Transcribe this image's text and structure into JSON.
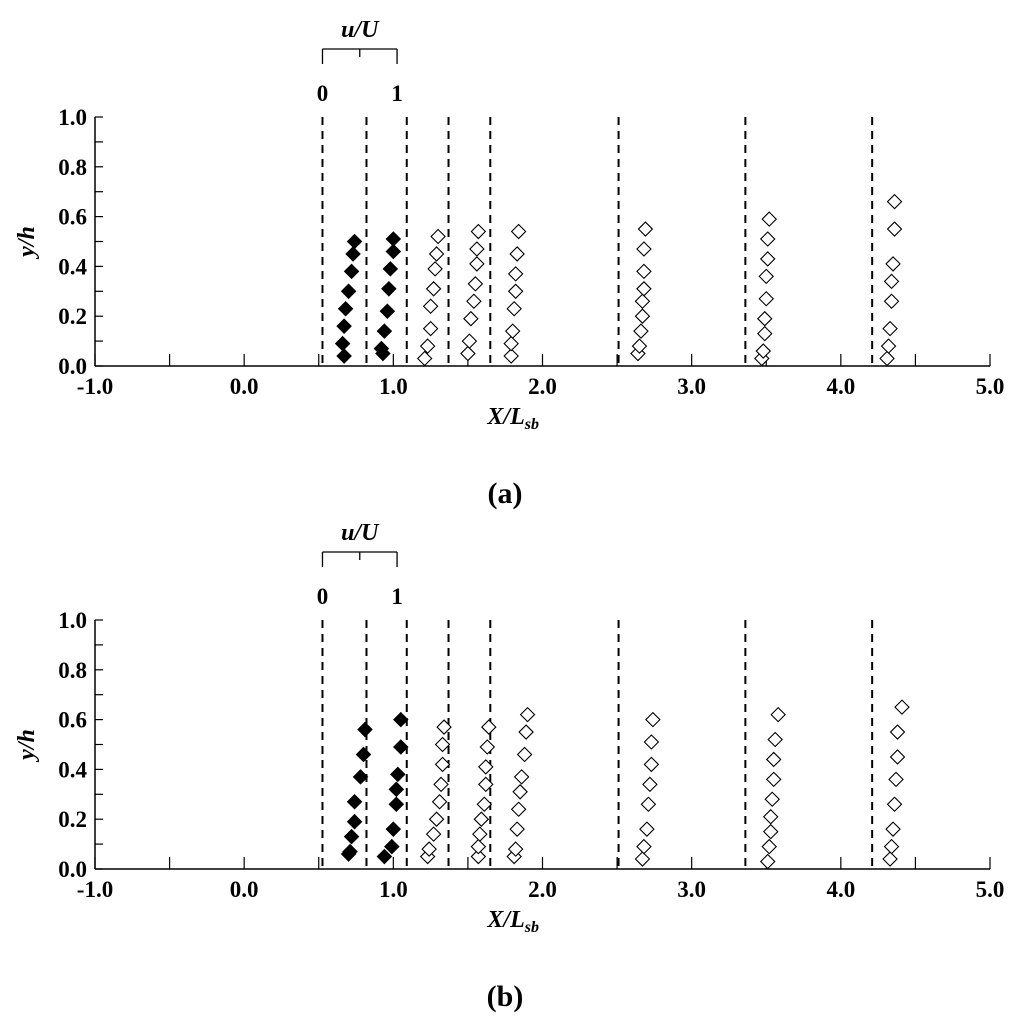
{
  "chart_data": [
    {
      "type": "scatter",
      "caption": "(a)",
      "xlabel": "X/L",
      "xlabel_sub": "sb",
      "ylabel": "y/h",
      "xlim": [
        -1.0,
        5.0
      ],
      "ylim": [
        0.0,
        1.0
      ],
      "x_ticks": [
        "-1.0",
        "0.0",
        "1.0",
        "2.0",
        "3.0",
        "4.0",
        "5.0"
      ],
      "y_ticks": [
        "0.0",
        "0.2",
        "0.4",
        "0.6",
        "0.8",
        "1.0"
      ],
      "inset_scale": {
        "label": "u/U",
        "min_label": "0",
        "max_label": "1"
      },
      "profile_stations": [
        0.525,
        0.82,
        1.09,
        1.37,
        1.65,
        2.51,
        3.36,
        4.21
      ],
      "series": [
        {
          "filled": true,
          "station": 0.525,
          "points": [
            [
              0.67,
              0.04
            ],
            [
              0.66,
              0.09
            ],
            [
              0.67,
              0.16
            ],
            [
              0.68,
              0.23
            ],
            [
              0.7,
              0.3
            ],
            [
              0.72,
              0.38
            ],
            [
              0.73,
              0.45
            ],
            [
              0.74,
              0.5
            ]
          ]
        },
        {
          "filled": true,
          "station": 0.82,
          "points": [
            [
              0.93,
              0.05
            ],
            [
              0.92,
              0.07
            ],
            [
              0.94,
              0.14
            ],
            [
              0.96,
              0.22
            ],
            [
              0.97,
              0.31
            ],
            [
              0.98,
              0.39
            ],
            [
              1.0,
              0.46
            ],
            [
              1.0,
              0.51
            ]
          ]
        },
        {
          "filled": false,
          "station": 1.09,
          "points": [
            [
              1.21,
              0.03
            ],
            [
              1.23,
              0.08
            ],
            [
              1.25,
              0.15
            ],
            [
              1.25,
              0.24
            ],
            [
              1.27,
              0.31
            ],
            [
              1.28,
              0.39
            ],
            [
              1.29,
              0.45
            ],
            [
              1.3,
              0.52
            ]
          ]
        },
        {
          "filled": false,
          "station": 1.37,
          "points": [
            [
              1.5,
              0.05
            ],
            [
              1.51,
              0.1
            ],
            [
              1.52,
              0.19
            ],
            [
              1.54,
              0.26
            ],
            [
              1.55,
              0.33
            ],
            [
              1.56,
              0.41
            ],
            [
              1.56,
              0.47
            ],
            [
              1.57,
              0.54
            ]
          ]
        },
        {
          "filled": false,
          "station": 1.65,
          "points": [
            [
              1.79,
              0.04
            ],
            [
              1.79,
              0.09
            ],
            [
              1.8,
              0.14
            ],
            [
              1.81,
              0.23
            ],
            [
              1.82,
              0.3
            ],
            [
              1.82,
              0.37
            ],
            [
              1.83,
              0.45
            ],
            [
              1.84,
              0.54
            ]
          ]
        },
        {
          "filled": false,
          "station": 2.51,
          "points": [
            [
              2.64,
              0.05
            ],
            [
              2.65,
              0.08
            ],
            [
              2.66,
              0.14
            ],
            [
              2.67,
              0.2
            ],
            [
              2.67,
              0.26
            ],
            [
              2.68,
              0.31
            ],
            [
              2.68,
              0.38
            ],
            [
              2.68,
              0.47
            ],
            [
              2.69,
              0.55
            ]
          ]
        },
        {
          "filled": false,
          "station": 3.36,
          "points": [
            [
              3.47,
              0.03
            ],
            [
              3.48,
              0.06
            ],
            [
              3.49,
              0.13
            ],
            [
              3.49,
              0.19
            ],
            [
              3.5,
              0.27
            ],
            [
              3.5,
              0.36
            ],
            [
              3.51,
              0.43
            ],
            [
              3.51,
              0.51
            ],
            [
              3.52,
              0.59
            ]
          ]
        },
        {
          "filled": false,
          "station": 4.21,
          "points": [
            [
              4.31,
              0.03
            ],
            [
              4.32,
              0.08
            ],
            [
              4.33,
              0.15
            ],
            [
              4.34,
              0.26
            ],
            [
              4.34,
              0.34
            ],
            [
              4.35,
              0.41
            ],
            [
              4.36,
              0.55
            ],
            [
              4.36,
              0.66
            ]
          ]
        }
      ]
    },
    {
      "type": "scatter",
      "caption": "(b)",
      "xlabel": "X/L",
      "xlabel_sub": "sb",
      "ylabel": "y/h",
      "xlim": [
        -1.0,
        5.0
      ],
      "ylim": [
        0.0,
        1.0
      ],
      "x_ticks": [
        "-1.0",
        "0.0",
        "1.0",
        "2.0",
        "3.0",
        "4.0",
        "5.0"
      ],
      "y_ticks": [
        "0.0",
        "0.2",
        "0.4",
        "0.6",
        "0.8",
        "1.0"
      ],
      "inset_scale": {
        "label": "u/U",
        "min_label": "0",
        "max_label": "1"
      },
      "profile_stations": [
        0.525,
        0.82,
        1.09,
        1.37,
        1.65,
        2.51,
        3.36,
        4.21
      ],
      "series": [
        {
          "filled": true,
          "station": 0.525,
          "points": [
            [
              0.7,
              0.06
            ],
            [
              0.71,
              0.07
            ],
            [
              0.72,
              0.13
            ],
            [
              0.74,
              0.19
            ],
            [
              0.74,
              0.27
            ],
            [
              0.78,
              0.37
            ],
            [
              0.8,
              0.46
            ],
            [
              0.81,
              0.56
            ]
          ]
        },
        {
          "filled": true,
          "station": 0.82,
          "points": [
            [
              0.94,
              0.05
            ],
            [
              0.99,
              0.09
            ],
            [
              1.0,
              0.16
            ],
            [
              1.02,
              0.26
            ],
            [
              1.02,
              0.32
            ],
            [
              1.03,
              0.38
            ],
            [
              1.05,
              0.49
            ],
            [
              1.05,
              0.6
            ]
          ]
        },
        {
          "filled": false,
          "station": 1.09,
          "points": [
            [
              1.23,
              0.05
            ],
            [
              1.24,
              0.08
            ],
            [
              1.27,
              0.14
            ],
            [
              1.29,
              0.2
            ],
            [
              1.31,
              0.27
            ],
            [
              1.32,
              0.34
            ],
            [
              1.33,
              0.42
            ],
            [
              1.33,
              0.5
            ],
            [
              1.34,
              0.57
            ]
          ]
        },
        {
          "filled": false,
          "station": 1.37,
          "points": [
            [
              1.57,
              0.05
            ],
            [
              1.57,
              0.09
            ],
            [
              1.58,
              0.14
            ],
            [
              1.59,
              0.2
            ],
            [
              1.61,
              0.26
            ],
            [
              1.62,
              0.34
            ],
            [
              1.62,
              0.41
            ],
            [
              1.63,
              0.49
            ],
            [
              1.64,
              0.57
            ]
          ]
        },
        {
          "filled": false,
          "station": 1.65,
          "points": [
            [
              1.81,
              0.05
            ],
            [
              1.82,
              0.08
            ],
            [
              1.83,
              0.16
            ],
            [
              1.84,
              0.24
            ],
            [
              1.85,
              0.31
            ],
            [
              1.86,
              0.37
            ],
            [
              1.88,
              0.46
            ],
            [
              1.89,
              0.55
            ],
            [
              1.9,
              0.62
            ]
          ]
        },
        {
          "filled": false,
          "station": 2.51,
          "points": [
            [
              2.67,
              0.04
            ],
            [
              2.68,
              0.09
            ],
            [
              2.7,
              0.16
            ],
            [
              2.71,
              0.26
            ],
            [
              2.72,
              0.34
            ],
            [
              2.73,
              0.42
            ],
            [
              2.73,
              0.51
            ],
            [
              2.74,
              0.6
            ]
          ]
        },
        {
          "filled": false,
          "station": 3.36,
          "points": [
            [
              3.51,
              0.03
            ],
            [
              3.52,
              0.09
            ],
            [
              3.53,
              0.15
            ],
            [
              3.53,
              0.21
            ],
            [
              3.54,
              0.28
            ],
            [
              3.55,
              0.36
            ],
            [
              3.55,
              0.44
            ],
            [
              3.56,
              0.52
            ],
            [
              3.58,
              0.62
            ]
          ]
        },
        {
          "filled": false,
          "station": 4.21,
          "points": [
            [
              4.33,
              0.04
            ],
            [
              4.34,
              0.09
            ],
            [
              4.35,
              0.16
            ],
            [
              4.36,
              0.26
            ],
            [
              4.37,
              0.36
            ],
            [
              4.38,
              0.45
            ],
            [
              4.38,
              0.55
            ],
            [
              4.41,
              0.65
            ]
          ]
        }
      ]
    }
  ]
}
